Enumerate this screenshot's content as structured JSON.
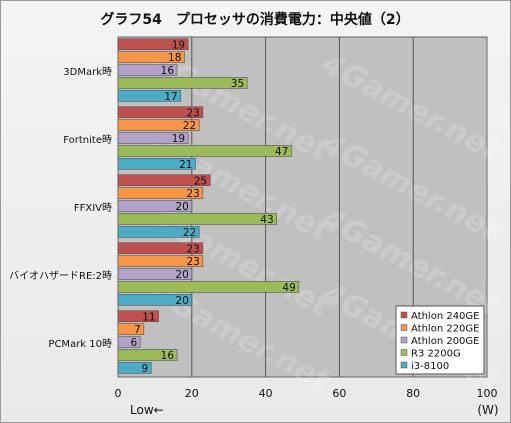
{
  "chart_data": {
    "type": "bar",
    "orientation": "horizontal",
    "title": "グラフ54　プロセッサの消費電力：中央値（2）",
    "categories": [
      "3DMark時",
      "Fortnite時",
      "FFXIV時",
      "バイオハザードRE:2時",
      "PCMark 10時"
    ],
    "series": [
      {
        "name": "Athlon 240GE",
        "color": "#c0504d",
        "values": [
          19,
          23,
          25,
          23,
          11
        ]
      },
      {
        "name": "Athlon 220GE",
        "color": "#f79646",
        "values": [
          18,
          22,
          23,
          23,
          7
        ]
      },
      {
        "name": "Athlon 200GE",
        "color": "#b3a2c7",
        "values": [
          16,
          19,
          20,
          20,
          6
        ]
      },
      {
        "name": "R3 2200G",
        "color": "#9bbb59",
        "values": [
          35,
          47,
          43,
          49,
          16
        ]
      },
      {
        "name": "i3-8100",
        "color": "#4bacc6",
        "values": [
          17,
          21,
          22,
          20,
          9
        ]
      }
    ],
    "xlim": [
      0,
      100
    ],
    "xticks": [
      0,
      20,
      40,
      60,
      80,
      100
    ],
    "xlabel": "(W)",
    "axis_note": "Low←",
    "grid": true,
    "legend_position": "bottom-right",
    "plot_background": "#c0c0c0",
    "watermark": "4Gamer.net"
  }
}
